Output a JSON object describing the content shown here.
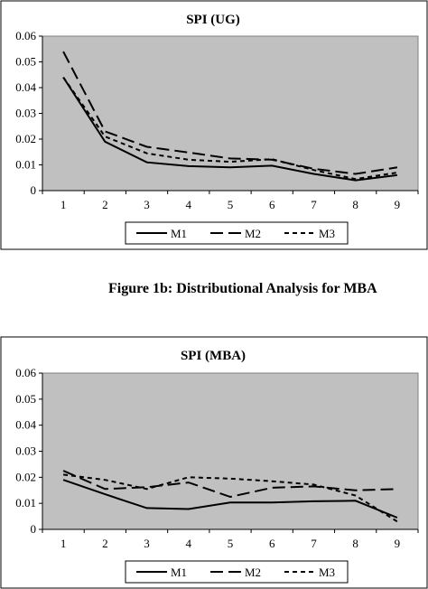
{
  "caption": "Figure 1b: Distributional Analysis for MBA",
  "chart_data": [
    {
      "type": "line",
      "title": "SPI (UG)",
      "xlabel": "",
      "ylabel": "",
      "categories": [
        "1",
        "2",
        "3",
        "4",
        "5",
        "6",
        "7",
        "8",
        "9"
      ],
      "ylim": [
        0,
        0.06
      ],
      "yticks": [
        "0",
        "0.01",
        "0.02",
        "0.03",
        "0.04",
        "0.05",
        "0.06"
      ],
      "grid": false,
      "legend_position": "bottom",
      "plot_background": "#c0c0c0",
      "series": [
        {
          "name": "M1",
          "dash": "solid",
          "values": [
            0.044,
            0.019,
            0.011,
            0.0095,
            0.009,
            0.0097,
            0.0065,
            0.004,
            0.006
          ]
        },
        {
          "name": "M2",
          "dash": "long-dash",
          "values": [
            0.054,
            0.023,
            0.017,
            0.0148,
            0.0125,
            0.012,
            0.0085,
            0.0065,
            0.009
          ]
        },
        {
          "name": "M3",
          "dash": "short-dash",
          "values": [
            0.044,
            0.021,
            0.0145,
            0.012,
            0.0112,
            0.0122,
            0.008,
            0.0045,
            0.007
          ]
        }
      ]
    },
    {
      "type": "line",
      "title": "SPI (MBA)",
      "xlabel": "",
      "ylabel": "",
      "categories": [
        "1",
        "2",
        "3",
        "4",
        "5",
        "6",
        "7",
        "8",
        "9"
      ],
      "ylim": [
        0,
        0.06
      ],
      "yticks": [
        "0",
        "0.01",
        "0.02",
        "0.03",
        "0.04",
        "0.05",
        "0.06"
      ],
      "grid": false,
      "legend_position": "bottom",
      "plot_background": "#c0c0c0",
      "series": [
        {
          "name": "M1",
          "dash": "solid",
          "values": [
            0.019,
            0.0135,
            0.0082,
            0.0078,
            0.0103,
            0.0103,
            0.0108,
            0.011,
            0.0045
          ]
        },
        {
          "name": "M2",
          "dash": "long-dash",
          "values": [
            0.0225,
            0.0155,
            0.0162,
            0.018,
            0.0125,
            0.016,
            0.0165,
            0.015,
            0.0155
          ]
        },
        {
          "name": "M3",
          "dash": "short-dash",
          "values": [
            0.021,
            0.019,
            0.0155,
            0.02,
            0.0195,
            0.0185,
            0.0172,
            0.013,
            0.003
          ]
        }
      ]
    }
  ]
}
